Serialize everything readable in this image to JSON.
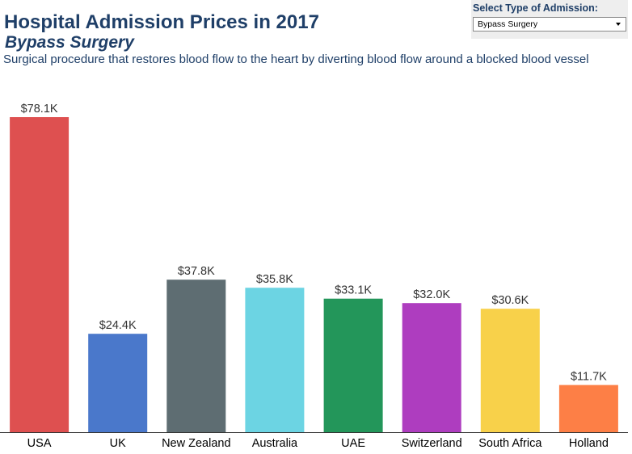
{
  "header": {
    "title": "Hospital Admission Prices in 2017",
    "subtitle": "Bypass Surgery",
    "description": "Surgical procedure that restores blood flow to the heart by diverting blood flow around a blocked blood vessel"
  },
  "filter": {
    "label": "Select Type of Admission:",
    "selected": "Bypass Surgery"
  },
  "chart_data": {
    "type": "bar",
    "title": "Hospital Admission Prices in 2017",
    "subtitle": "Bypass Surgery",
    "xlabel": "",
    "ylabel": "",
    "grid": false,
    "ylim": [
      0,
      78.1
    ],
    "categories": [
      "USA",
      "UK",
      "New Zealand",
      "Australia",
      "UAE",
      "Switzerland",
      "South Africa",
      "Holland"
    ],
    "values": [
      78.1,
      24.4,
      37.8,
      35.8,
      33.1,
      32.0,
      30.6,
      11.7
    ],
    "labels": [
      "$78.1K",
      "$24.4K",
      "$37.8K",
      "$35.8K",
      "$33.1K",
      "$32.0K",
      "$30.6K",
      "$11.7K"
    ],
    "colors": [
      "#de5050",
      "#4a78cb",
      "#5e6d72",
      "#6cd4e3",
      "#23965a",
      "#ae3dbf",
      "#f8d14a",
      "#fd7f46"
    ]
  }
}
